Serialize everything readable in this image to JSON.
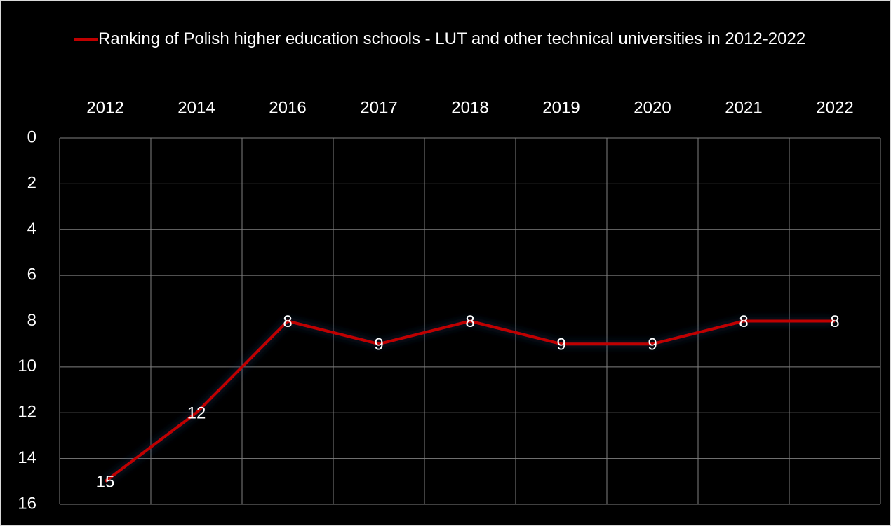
{
  "chart_data": {
    "type": "line",
    "categories": [
      "2012",
      "2014",
      "2016",
      "2017",
      "2018",
      "2019",
      "2020",
      "2021",
      "2022"
    ],
    "series": [
      {
        "name": "Ranking of Polish higher education schools - LUT and other technical universities in 2012-2022",
        "color": "#c00000",
        "values": [
          15,
          12,
          8,
          9,
          8,
          9,
          9,
          8,
          8
        ]
      }
    ],
    "ylim": [
      0,
      16
    ],
    "yticks": [
      0,
      2,
      4,
      6,
      8,
      10,
      12,
      14,
      16
    ],
    "yreverse": true,
    "grid": true,
    "legend": "top"
  }
}
